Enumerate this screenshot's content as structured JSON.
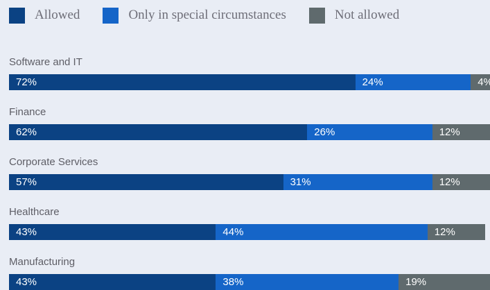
{
  "legend": [
    {
      "label": "Allowed",
      "color": "#0b4283"
    },
    {
      "label": "Only in special circumstances",
      "color": "#1565c8"
    },
    {
      "label": "Not allowed",
      "color": "#5f6a6d"
    }
  ],
  "chart_data": {
    "type": "bar",
    "orientation": "horizontal",
    "stacked": true,
    "legend_position": "top-left",
    "grid": false,
    "categories": [
      "Software and IT",
      "Finance",
      "Corporate Services",
      "Healthcare",
      "Manufacturing"
    ],
    "series": [
      {
        "name": "Allowed",
        "color": "#0b4283",
        "values": [
          72,
          62,
          57,
          43,
          43
        ],
        "labels": [
          "72%",
          "62%",
          "57%",
          "43%",
          "43%"
        ]
      },
      {
        "name": "Only in special circumstances",
        "color": "#1565c8",
        "values": [
          24,
          26,
          31,
          44,
          38
        ],
        "labels": [
          "24%",
          "26%",
          "31%",
          "44%",
          "38%"
        ]
      },
      {
        "name": "Not allowed",
        "color": "#5f6a6d",
        "values": [
          4,
          12,
          12,
          12,
          19
        ],
        "labels": [
          "4%",
          "12%",
          "12%",
          "12%",
          "19%"
        ]
      }
    ]
  }
}
